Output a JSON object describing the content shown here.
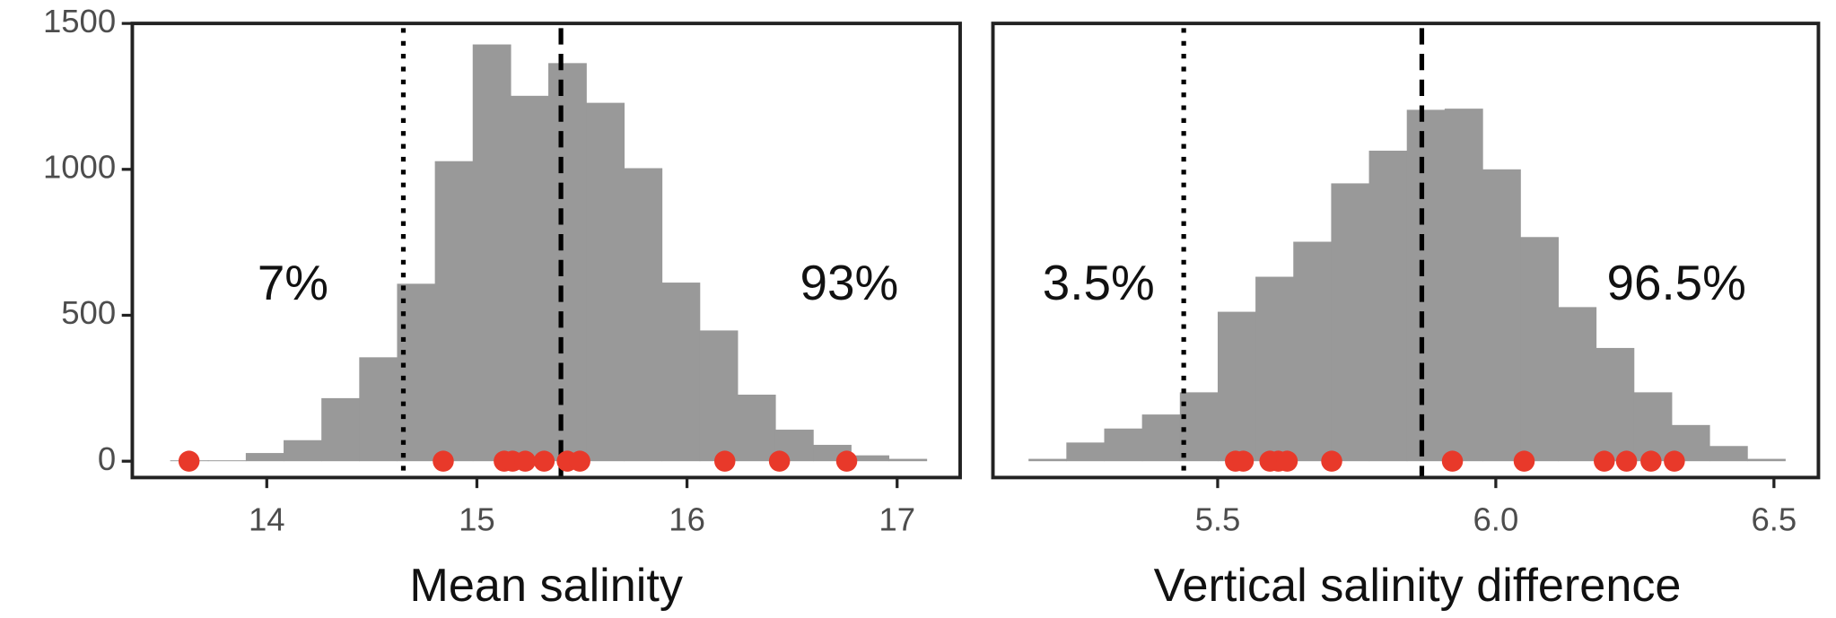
{
  "chart_data": [
    {
      "type": "histogram",
      "x_label": "Mean salinity",
      "color": "#999999",
      "point_color": "#e8392a",
      "bins": [
        13.54,
        13.72,
        13.9,
        14.08,
        14.26,
        14.44,
        14.62,
        14.8,
        14.98,
        15.16,
        15.34,
        15.52,
        15.7,
        15.88,
        16.06,
        16.24,
        16.42,
        16.6,
        16.78,
        16.96,
        17.14
      ],
      "values": [
        3,
        3,
        28,
        72,
        216,
        356,
        608,
        1028,
        1428,
        1252,
        1364,
        1228,
        1004,
        612,
        448,
        228,
        108,
        56,
        20,
        8
      ],
      "points": {
        "x": [
          13.63,
          14.84,
          15.13,
          15.17,
          15.23,
          15.32,
          15.43,
          15.49,
          16.18,
          16.44,
          16.76
        ],
        "y": [
          0,
          0,
          0,
          0,
          0,
          0,
          0,
          0,
          0,
          0,
          0
        ]
      },
      "vlines": [
        {
          "value": 14.65,
          "style": "dotted"
        },
        {
          "value": 15.4,
          "style": "dashed"
        }
      ],
      "annotations": [
        "7%",
        "93%"
      ],
      "xlim": [
        13.36,
        17.3
      ],
      "xticks": [
        14,
        15,
        16,
        17
      ],
      "ylim": [
        -56,
        1500
      ],
      "yticks": [
        0,
        500,
        1000,
        1500
      ]
    },
    {
      "type": "histogram",
      "x_label": "Vertical salinity difference",
      "color": "#999999",
      "point_color": "#e8392a",
      "bins": [
        5.16,
        5.228,
        5.296,
        5.364,
        5.432,
        5.5,
        5.568,
        5.636,
        5.704,
        5.772,
        5.84,
        5.908,
        5.976,
        6.044,
        6.112,
        6.18,
        6.248,
        6.316,
        6.384,
        6.452,
        6.52
      ],
      "values": [
        8,
        64,
        112,
        160,
        236,
        512,
        632,
        752,
        952,
        1064,
        1204,
        1208,
        1000,
        768,
        528,
        388,
        236,
        124,
        52,
        8
      ],
      "points": {
        "x": [
          5.532,
          5.546,
          5.594,
          5.609,
          5.625,
          5.705,
          5.922,
          6.051,
          6.195,
          6.235,
          6.279,
          6.321
        ],
        "y": [
          0,
          0,
          0,
          0,
          0,
          0,
          0,
          0,
          0,
          0,
          0,
          0
        ]
      },
      "vlines": [
        {
          "value": 5.439,
          "style": "dotted"
        },
        {
          "value": 5.867,
          "style": "dashed"
        }
      ],
      "annotations": [
        "3.5%",
        "96.5%"
      ],
      "xlim": [
        5.096,
        6.58
      ],
      "xticks": [
        {
          "value": 5.5,
          "label": "5.5"
        },
        {
          "value": 6.0,
          "label": "6.0"
        },
        {
          "value": 6.5,
          "label": "6.5"
        }
      ],
      "ylim": [
        -56,
        1500
      ]
    }
  ]
}
